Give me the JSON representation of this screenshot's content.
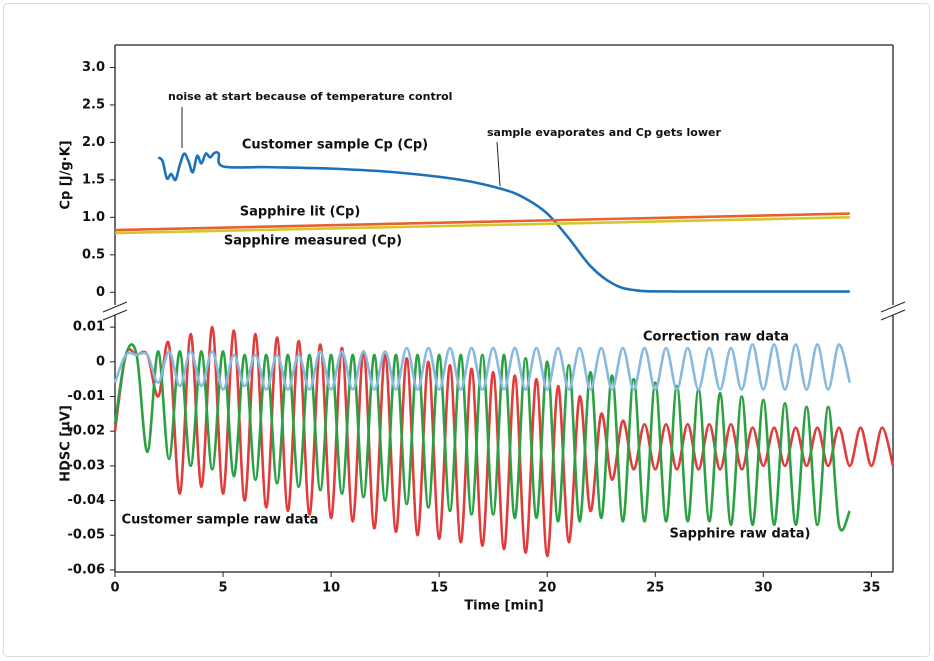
{
  "chart_data": [
    {
      "type": "line",
      "ylabel": "Cp [J/g·K]",
      "xlim": [
        0,
        36
      ],
      "ylim": [
        -0.17,
        3.3
      ],
      "yticks": [
        0,
        0.5,
        {
          "value": 1,
          "label": "1.0"
        },
        1.5,
        {
          "value": 2,
          "label": "2.0"
        },
        2.5,
        {
          "value": 3,
          "label": "3.0"
        }
      ],
      "annotations": [
        "noise at start because of temperature control",
        "sample evaporates and Cp gets lower"
      ],
      "series": [
        {
          "name": "Customer sample Cp (Cp)",
          "color": "#1c72b8",
          "x": [
            2,
            2.2,
            2.4,
            2.6,
            2.8,
            3,
            3.2,
            3.4,
            3.6,
            3.8,
            4,
            4.2,
            4.4,
            4.6,
            4.8,
            5,
            7,
            10,
            13,
            16,
            18,
            19,
            20,
            21,
            22,
            23,
            24,
            26,
            34
          ],
          "values": [
            1.8,
            1.75,
            1.52,
            1.58,
            1.5,
            1.7,
            1.85,
            1.75,
            1.6,
            1.82,
            1.72,
            1.85,
            1.8,
            1.86,
            1.85,
            1.68,
            1.67,
            1.65,
            1.6,
            1.5,
            1.37,
            1.25,
            1.05,
            0.72,
            0.35,
            0.12,
            0.03,
            0.01,
            0.01
          ]
        },
        {
          "name": "Sapphire lit (Cp)",
          "color": "#e8612c",
          "x": [
            0,
            34
          ],
          "values": [
            0.83,
            1.05
          ]
        },
        {
          "name": "Sapphire measured (Cp)",
          "color": "#d6c52c",
          "x": [
            0,
            34
          ],
          "values": [
            0.79,
            1.0
          ]
        }
      ]
    },
    {
      "type": "line",
      "ylabel": "HDSC [µV]",
      "xlabel": "Time [min]",
      "xlim": [
        0,
        36
      ],
      "ylim": [
        -0.0606,
        0.0135
      ],
      "xticks": [
        0,
        5,
        10,
        15,
        20,
        25,
        30,
        35
      ],
      "yticks": [
        0.01,
        0,
        -0.01,
        -0.02,
        -0.03,
        -0.04,
        -0.05,
        -0.06
      ],
      "series": [
        {
          "name": "Customer sample raw data",
          "color": "#e23b3b",
          "x": [
            0,
            0.5,
            1,
            1.5,
            2,
            2.5,
            3,
            3.5,
            4,
            4.5,
            5,
            5.5,
            6,
            6.5,
            7,
            7.5,
            8,
            8.5,
            9,
            9.5,
            10,
            10.5,
            11,
            11.5,
            12,
            12.5,
            13,
            13.5,
            14,
            14.5,
            15,
            15.5,
            16,
            16.5,
            17,
            17.5,
            18,
            18.5,
            19,
            19.5,
            20,
            20.5,
            21,
            21.5,
            22,
            22.5,
            23,
            23.5,
            24,
            24.5,
            25,
            25.5,
            26,
            26.5,
            27,
            27.5,
            28,
            28.5,
            29,
            29.5,
            30,
            30.5,
            31,
            31.5,
            32,
            32.5,
            33,
            33.5,
            34,
            34.5,
            35,
            35.5,
            36
          ],
          "values": [
            -0.02,
            0.002,
            0.002,
            0.002,
            -0.01,
            0.005,
            -0.038,
            0.008,
            -0.036,
            0.01,
            -0.038,
            0.009,
            -0.04,
            0.008,
            -0.042,
            0.007,
            -0.043,
            0.006,
            -0.044,
            0.005,
            -0.045,
            0.004,
            -0.046,
            0.003,
            -0.048,
            0.002,
            -0.049,
            0.001,
            -0.05,
            0,
            -0.051,
            -0.001,
            -0.052,
            -0.002,
            -0.053,
            -0.003,
            -0.054,
            -0.004,
            -0.055,
            -0.005,
            -0.056,
            -0.007,
            -0.052,
            -0.01,
            -0.043,
            -0.015,
            -0.034,
            -0.017,
            -0.031,
            -0.018,
            -0.031,
            -0.018,
            -0.031,
            -0.018,
            -0.031,
            -0.018,
            -0.031,
            -0.018,
            -0.031,
            -0.019,
            -0.03,
            -0.019,
            -0.03,
            -0.019,
            -0.03,
            -0.019,
            -0.03,
            -0.019,
            -0.03,
            -0.019,
            -0.03,
            -0.019,
            -0.03
          ]
        },
        {
          "name": "Sapphire raw data)",
          "color": "#2ba143",
          "x": [
            0,
            0.5,
            1,
            1.5,
            2,
            2.5,
            3,
            3.5,
            4,
            4.5,
            5,
            5.5,
            6,
            6.5,
            7,
            7.5,
            8,
            8.5,
            9,
            9.5,
            10,
            10.5,
            11,
            11.5,
            12,
            12.5,
            13,
            13.5,
            14,
            14.5,
            15,
            15.5,
            16,
            16.5,
            17,
            17.5,
            18,
            18.5,
            19,
            19.5,
            20,
            20.5,
            21,
            21.5,
            22,
            22.5,
            23,
            23.5,
            24,
            24.5,
            25,
            25.5,
            26,
            26.5,
            27,
            27.5,
            28,
            28.5,
            29,
            29.5,
            30,
            30.5,
            31,
            31.5,
            32,
            32.5,
            33,
            33.5,
            34
          ],
          "values": [
            -0.018,
            0.002,
            0.002,
            -0.026,
            0.003,
            -0.028,
            0.003,
            -0.03,
            0.003,
            -0.031,
            0.003,
            -0.033,
            0.002,
            -0.034,
            0.002,
            -0.035,
            0.002,
            -0.036,
            0.002,
            -0.037,
            0.002,
            -0.038,
            0.002,
            -0.039,
            0.002,
            -0.04,
            0.002,
            -0.041,
            0.002,
            -0.042,
            0.002,
            -0.043,
            0.002,
            -0.044,
            0.002,
            -0.044,
            0.002,
            -0.045,
            0.001,
            -0.045,
            0,
            -0.046,
            -0.001,
            -0.046,
            -0.003,
            -0.045,
            -0.004,
            -0.046,
            -0.005,
            -0.046,
            -0.006,
            -0.046,
            -0.007,
            -0.046,
            -0.008,
            -0.046,
            -0.009,
            -0.047,
            -0.01,
            -0.047,
            -0.011,
            -0.047,
            -0.012,
            -0.047,
            -0.013,
            -0.047,
            -0.013,
            -0.047,
            -0.043
          ]
        },
        {
          "name": "Correction raw data",
          "color": "#88badf",
          "x": [
            0,
            0.5,
            1,
            1.5,
            2,
            2.5,
            3,
            3.5,
            4,
            4.5,
            5,
            5.5,
            6,
            6.5,
            7,
            7.5,
            8,
            8.5,
            9,
            9.5,
            10,
            10.5,
            11,
            11.5,
            12,
            12.5,
            13,
            13.5,
            14,
            14.5,
            15,
            15.5,
            16,
            16.5,
            17,
            17.5,
            18,
            18.5,
            19,
            19.5,
            20,
            20.5,
            21,
            21.5,
            22,
            22.5,
            23,
            23.5,
            24,
            24.5,
            25,
            25.5,
            26,
            26.5,
            27,
            27.5,
            28,
            28.5,
            29,
            29.5,
            30,
            30.5,
            31,
            31.5,
            32,
            32.5,
            33,
            33.5,
            34
          ],
          "values": [
            -0.006,
            0.002,
            0.002,
            0.002,
            -0.006,
            0.003,
            -0.007,
            0.003,
            -0.007,
            0.003,
            -0.008,
            0.002,
            -0.007,
            0.002,
            -0.008,
            0.002,
            -0.008,
            0.002,
            -0.008,
            0.003,
            -0.008,
            0.003,
            -0.008,
            0.003,
            -0.008,
            0.003,
            -0.008,
            0.004,
            -0.008,
            0.004,
            -0.008,
            0.004,
            -0.008,
            0.004,
            -0.008,
            0.004,
            -0.008,
            0.004,
            -0.008,
            0.004,
            -0.008,
            0.004,
            -0.008,
            0.004,
            -0.008,
            0.004,
            -0.008,
            0.004,
            -0.008,
            0.004,
            -0.008,
            0.004,
            -0.008,
            0.004,
            -0.008,
            0.004,
            -0.008,
            0.004,
            -0.008,
            0.005,
            -0.008,
            0.005,
            -0.008,
            0.005,
            -0.008,
            0.005,
            -0.008,
            0.005,
            -0.006
          ]
        }
      ]
    }
  ]
}
